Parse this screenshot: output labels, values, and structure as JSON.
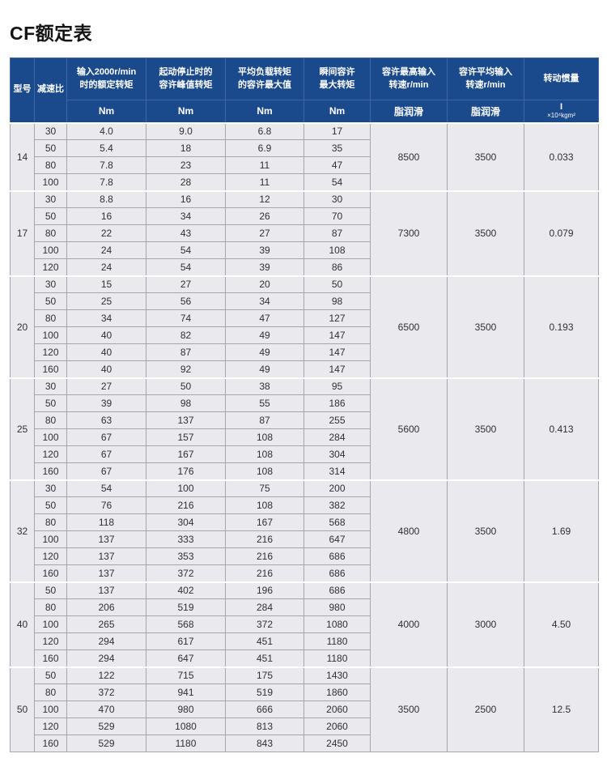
{
  "title": "CF额定表",
  "colors": {
    "header_bg": "#1A4A8C",
    "header_text": "#FFFFFF",
    "body_cell_bg": "#E9E9EE",
    "grid_line": "#A6A6AF",
    "section_separator": "#FFFFFF",
    "body_text": "#2F2F35"
  },
  "table": {
    "columns": [
      {
        "label": "型号"
      },
      {
        "label": "减速比"
      },
      {
        "label": "输入2000r/min\n时的额定转矩",
        "sub": [
          "Nm"
        ]
      },
      {
        "label": "起动停止时的\n容许峰值转矩",
        "sub": [
          "Nm"
        ]
      },
      {
        "label": "平均负载转矩\n的容许最大值",
        "sub": [
          "Nm"
        ]
      },
      {
        "label": "瞬间容许\n最大转矩",
        "sub": [
          "Nm"
        ]
      },
      {
        "label": "容许最高输入\n转速r/min",
        "sub": [
          "脂润滑"
        ]
      },
      {
        "label": "容许平均输入\n转速r/min",
        "sub": [
          "脂润滑"
        ]
      },
      {
        "label": "转动惯量",
        "sub": [
          "I",
          "×10⁴kgm²"
        ]
      }
    ],
    "sections": [
      {
        "model": "14",
        "rows": [
          [
            "30",
            "4.0",
            "9.0",
            "6.8",
            "17"
          ],
          [
            "50",
            "5.4",
            "18",
            "6.9",
            "35"
          ],
          [
            "80",
            "7.8",
            "23",
            "11",
            "47"
          ],
          [
            "100",
            "7.8",
            "28",
            "11",
            "54"
          ]
        ],
        "max_input_speed": "8500",
        "avg_input_speed": "3500",
        "inertia": "0.033"
      },
      {
        "model": "17",
        "rows": [
          [
            "30",
            "8.8",
            "16",
            "12",
            "30"
          ],
          [
            "50",
            "16",
            "34",
            "26",
            "70"
          ],
          [
            "80",
            "22",
            "43",
            "27",
            "87"
          ],
          [
            "100",
            "24",
            "54",
            "39",
            "108"
          ],
          [
            "120",
            "24",
            "54",
            "39",
            "86"
          ]
        ],
        "max_input_speed": "7300",
        "avg_input_speed": "3500",
        "inertia": "0.079"
      },
      {
        "model": "20",
        "rows": [
          [
            "30",
            "15",
            "27",
            "20",
            "50"
          ],
          [
            "50",
            "25",
            "56",
            "34",
            "98"
          ],
          [
            "80",
            "34",
            "74",
            "47",
            "127"
          ],
          [
            "100",
            "40",
            "82",
            "49",
            "147"
          ],
          [
            "120",
            "40",
            "87",
            "49",
            "147"
          ],
          [
            "160",
            "40",
            "92",
            "49",
            "147"
          ]
        ],
        "max_input_speed": "6500",
        "avg_input_speed": "3500",
        "inertia": "0.193"
      },
      {
        "model": "25",
        "rows": [
          [
            "30",
            "27",
            "50",
            "38",
            "95"
          ],
          [
            "50",
            "39",
            "98",
            "55",
            "186"
          ],
          [
            "80",
            "63",
            "137",
            "87",
            "255"
          ],
          [
            "100",
            "67",
            "157",
            "108",
            "284"
          ],
          [
            "120",
            "67",
            "167",
            "108",
            "304"
          ],
          [
            "160",
            "67",
            "176",
            "108",
            "314"
          ]
        ],
        "max_input_speed": "5600",
        "avg_input_speed": "3500",
        "inertia": "0.413"
      },
      {
        "model": "32",
        "rows": [
          [
            "30",
            "54",
            "100",
            "75",
            "200"
          ],
          [
            "50",
            "76",
            "216",
            "108",
            "382"
          ],
          [
            "80",
            "118",
            "304",
            "167",
            "568"
          ],
          [
            "100",
            "137",
            "333",
            "216",
            "647"
          ],
          [
            "120",
            "137",
            "353",
            "216",
            "686"
          ],
          [
            "160",
            "137",
            "372",
            "216",
            "686"
          ]
        ],
        "max_input_speed": "4800",
        "avg_input_speed": "3500",
        "inertia": "1.69"
      },
      {
        "model": "40",
        "rows": [
          [
            "50",
            "137",
            "402",
            "196",
            "686"
          ],
          [
            "80",
            "206",
            "519",
            "284",
            "980"
          ],
          [
            "100",
            "265",
            "568",
            "372",
            "1080"
          ],
          [
            "120",
            "294",
            "617",
            "451",
            "1180"
          ],
          [
            "160",
            "294",
            "647",
            "451",
            "1180"
          ]
        ],
        "max_input_speed": "4000",
        "avg_input_speed": "3000",
        "inertia": "4.50"
      },
      {
        "model": "50",
        "rows": [
          [
            "50",
            "122",
            "715",
            "175",
            "1430"
          ],
          [
            "80",
            "372",
            "941",
            "519",
            "1860"
          ],
          [
            "100",
            "470",
            "980",
            "666",
            "2060"
          ],
          [
            "120",
            "529",
            "1080",
            "813",
            "2060"
          ],
          [
            "160",
            "529",
            "1180",
            "843",
            "2450"
          ]
        ],
        "max_input_speed": "3500",
        "avg_input_speed": "2500",
        "inertia": "12.5"
      }
    ]
  }
}
